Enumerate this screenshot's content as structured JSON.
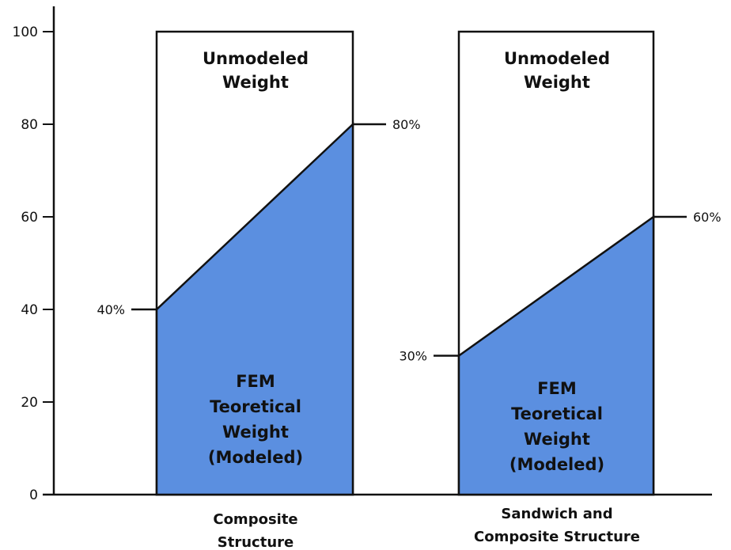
{
  "chart_data": {
    "type": "area",
    "title": "",
    "xlabel": "",
    "ylabel": "",
    "ylim": [
      0,
      100
    ],
    "yticks": [
      0,
      20,
      40,
      60,
      80,
      100
    ],
    "grid": false,
    "colors": {
      "modeled_fill": "#5b8fe0",
      "outline": "#111111",
      "background": "#ffffff"
    },
    "categories": [
      {
        "name_lines": [
          "Composite",
          "Structure"
        ],
        "modeled_start": 40,
        "modeled_end": 80,
        "start_label": "40%",
        "end_label": "80%",
        "upper_label_lines": [
          "Unmodeled",
          "Weight"
        ],
        "lower_label_lines": [
          "FEM",
          "Teoretical",
          "Weight",
          "(Modeled)"
        ]
      },
      {
        "name_lines": [
          "Sandwich and",
          "Composite Structure"
        ],
        "modeled_start": 30,
        "modeled_end": 60,
        "start_label": "30%",
        "end_label": "60%",
        "upper_label_lines": [
          "Unmodeled",
          "Weight"
        ],
        "lower_label_lines": [
          "FEM",
          "Teoretical",
          "Weight",
          "(Modeled)"
        ]
      }
    ]
  }
}
